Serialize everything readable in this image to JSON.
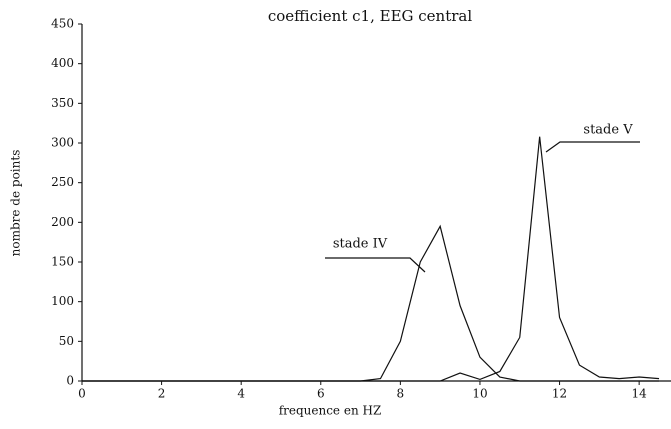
{
  "chart_data": {
    "type": "line",
    "title": "coefficient c1, EEG central",
    "x_label": "frequence en HZ",
    "y_label": "nombre de points",
    "x": [
      0,
      0.5,
      1,
      1.5,
      2,
      2.5,
      3,
      3.5,
      4,
      4.5,
      5,
      5.5,
      6,
      6.5,
      7,
      7.5,
      8,
      8.5,
      9,
      9.5,
      10,
      10.5,
      11,
      11.5,
      12,
      12.5,
      13,
      13.5,
      14,
      14.5
    ],
    "series": [
      {
        "name": "stade IV",
        "color": "#111111",
        "values": [
          0,
          0,
          0,
          0,
          0,
          0,
          0,
          0,
          0,
          0,
          0,
          0,
          0,
          0,
          0,
          3,
          50,
          150,
          195,
          95,
          30,
          5,
          0,
          0,
          0,
          0,
          0,
          0,
          0,
          0
        ]
      },
      {
        "name": "stade V",
        "color": "#111111",
        "values": [
          0,
          0,
          0,
          0,
          0,
          0,
          0,
          0,
          0,
          0,
          0,
          0,
          0,
          0,
          0,
          0,
          0,
          0,
          0,
          10,
          2,
          12,
          55,
          308,
          80,
          20,
          5,
          3,
          5,
          3
        ]
      }
    ],
    "xlim": [
      0,
      14.7
    ],
    "ylim": [
      0,
      450
    ],
    "xticks": [
      0,
      2,
      4,
      6,
      8,
      10,
      12,
      14
    ],
    "yticks": [
      0,
      50,
      100,
      150,
      200,
      250,
      300,
      350,
      400,
      450
    ],
    "grid": false
  }
}
